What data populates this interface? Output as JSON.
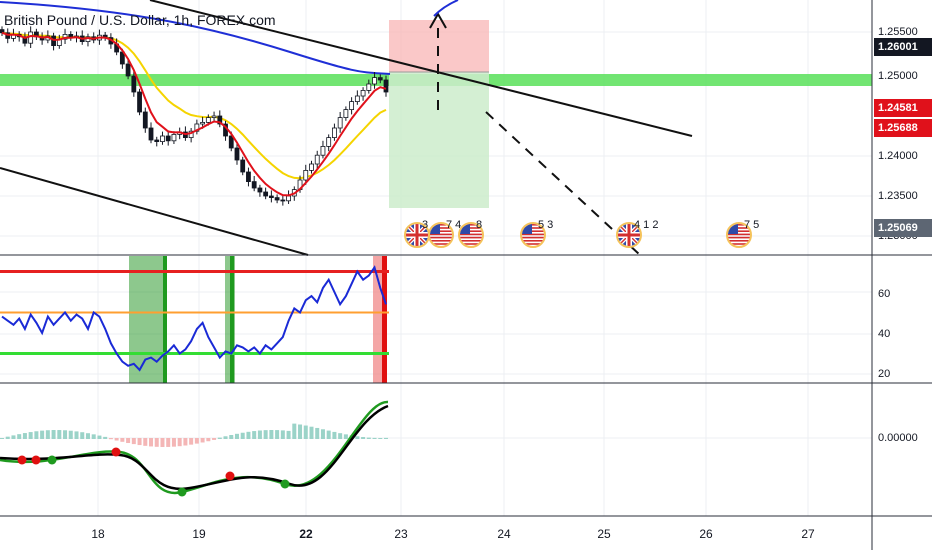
{
  "title": "British Pound / U.S. Dollar, 1h, FOREX.com",
  "x_axis": {
    "labels": [
      {
        "text": "18",
        "bold": false
      },
      {
        "text": "19",
        "bold": false
      },
      {
        "text": "22",
        "bold": true
      },
      {
        "text": "23",
        "bold": false
      },
      {
        "text": "24",
        "bold": false
      },
      {
        "text": "25",
        "bold": false
      },
      {
        "text": "26",
        "bold": false
      },
      {
        "text": "27",
        "bold": false
      }
    ]
  },
  "price_axis": {
    "ticks": [
      "1.25500",
      "1.25000",
      "1.24000",
      "1.23500",
      "1.23000"
    ],
    "badges": [
      {
        "value": "1.26001",
        "color": "#131722"
      },
      {
        "value": "1.24581",
        "color": "#e0111b"
      },
      {
        "value": "1.25688",
        "color": "#e0111b"
      },
      {
        "value": "1.25069",
        "color": "#5d6673"
      }
    ]
  },
  "rsi_axis": {
    "ticks": [
      "60",
      "40",
      "20"
    ]
  },
  "macd_axis": {
    "ticks": [
      "0.00000"
    ]
  },
  "events": [
    {
      "flag": "uk",
      "text": "3"
    },
    {
      "flag": "us",
      "text": "7 4"
    },
    {
      "flag": "us",
      "text": "8"
    },
    {
      "flag": "us",
      "text": "5 3"
    },
    {
      "flag": "uk",
      "text": "4 1 2"
    },
    {
      "flag": "us",
      "text": "7 5"
    }
  ],
  "colors": {
    "grid": "#eceff3",
    "up": "#131722",
    "down": "#131722",
    "ma_red": "#e0111b",
    "ma_yellow": "#f5d400",
    "ma_blue": "#1f2fd6",
    "support": "#59e059",
    "rsi": "#1a2ad6",
    "rsi_red": "#e62020",
    "rsi_orange": "#ff9f30",
    "rsi_green": "#33dd33",
    "macd_green": "#1f9a1f",
    "macd_black": "#000000"
  },
  "chart_data": {
    "type": "candlestick",
    "symbol": "British Pound / U.S. Dollar",
    "timeframe": "1h",
    "x_ticks": [
      "18",
      "19",
      "22",
      "23",
      "24",
      "25",
      "26",
      "27"
    ],
    "y_ticks": [
      1.255,
      1.25,
      1.24,
      1.235,
      1.23
    ],
    "y_range": [
      1.228,
      1.2585
    ],
    "price_labels": [
      1.26001,
      1.24581,
      1.25688,
      1.25069
    ],
    "rsi": {
      "levels": [
        70,
        50,
        30
      ],
      "y_ticks": [
        60,
        40,
        20
      ]
    },
    "macd": {
      "y_ticks": [
        0.0
      ]
    }
  }
}
